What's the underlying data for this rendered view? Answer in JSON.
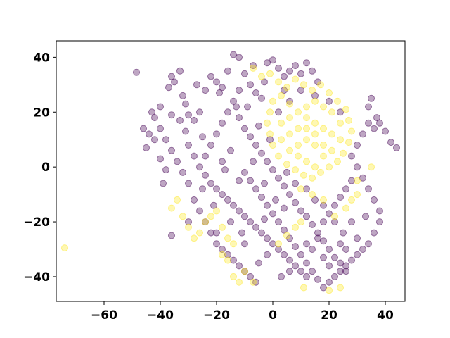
{
  "chart_data": {
    "type": "scatter",
    "title": "",
    "xlabel": "",
    "ylabel": "",
    "xlim": [
      -77,
      47
    ],
    "ylim": [
      -49,
      46
    ],
    "x_ticks": [
      -60,
      -40,
      -20,
      0,
      20,
      40
    ],
    "y_ticks": [
      -40,
      -20,
      0,
      20,
      40
    ],
    "x_tick_labels": [
      "−60",
      "−40",
      "−20",
      "0",
      "20",
      "40"
    ],
    "y_tick_labels": [
      "−40",
      "−20",
      "0",
      "20",
      "40"
    ],
    "grid": false,
    "legend": "none",
    "marker_alpha": 0.35,
    "colors": {
      "class_0": "#440154",
      "class_1": "#fde725"
    },
    "series": [
      {
        "color_key": "class_0",
        "points": [
          [
            -48.5,
            34.5
          ],
          [
            -44,
            12
          ],
          [
            -46,
            14
          ],
          [
            -42,
            10
          ],
          [
            -45,
            7
          ],
          [
            -40,
            3
          ],
          [
            -38,
            -1
          ],
          [
            -39,
            -6
          ],
          [
            -36,
            33
          ],
          [
            -37,
            29
          ],
          [
            -35,
            31
          ],
          [
            -33,
            35
          ],
          [
            -32,
            26
          ],
          [
            -31,
            23
          ],
          [
            -30,
            19
          ],
          [
            -28,
            17
          ],
          [
            -26,
            20
          ],
          [
            -25,
            11
          ],
          [
            -22,
            33
          ],
          [
            -20,
            31
          ],
          [
            -18,
            29
          ],
          [
            -16,
            35
          ],
          [
            -14,
            41
          ],
          [
            -12,
            40
          ],
          [
            -10,
            34
          ],
          [
            -8,
            30
          ],
          [
            -6,
            27
          ],
          [
            -4,
            25
          ],
          [
            -2,
            38
          ],
          [
            0,
            39
          ],
          [
            2,
            36
          ],
          [
            4,
            33
          ],
          [
            6,
            35
          ],
          [
            8,
            37
          ],
          [
            10,
            34
          ],
          [
            12,
            38
          ],
          [
            14,
            35
          ],
          [
            16,
            31
          ],
          [
            -13,
            22
          ],
          [
            -12,
            18
          ],
          [
            -10,
            14
          ],
          [
            -8,
            11
          ],
          [
            -6,
            8
          ],
          [
            -4,
            5
          ],
          [
            -2,
            2
          ],
          [
            0,
            -1
          ],
          [
            2,
            -4
          ],
          [
            4,
            -7
          ],
          [
            6,
            -10
          ],
          [
            8,
            -13
          ],
          [
            10,
            -16
          ],
          [
            12,
            -18
          ],
          [
            14,
            -21
          ],
          [
            16,
            -24
          ],
          [
            18,
            -27
          ],
          [
            20,
            -30
          ],
          [
            22,
            -33
          ],
          [
            24,
            -35
          ],
          [
            26,
            -38
          ],
          [
            -24,
            -3
          ],
          [
            -22,
            -6
          ],
          [
            -20,
            -8
          ],
          [
            -18,
            -10
          ],
          [
            -16,
            -12
          ],
          [
            -14,
            -14
          ],
          [
            -12,
            -16
          ],
          [
            -10,
            -18
          ],
          [
            -8,
            -20
          ],
          [
            -6,
            -22
          ],
          [
            -4,
            -24
          ],
          [
            -2,
            -26
          ],
          [
            0,
            -28
          ],
          [
            2,
            -30
          ],
          [
            4,
            -32
          ],
          [
            6,
            -34
          ],
          [
            8,
            -36
          ],
          [
            10,
            -38
          ],
          [
            12,
            -40
          ],
          [
            -28,
            -12
          ],
          [
            -26,
            -16
          ],
          [
            -24,
            -20
          ],
          [
            -22,
            -24
          ],
          [
            -20,
            -28
          ],
          [
            -18,
            -30
          ],
          [
            -16,
            -32
          ],
          [
            -14,
            -34
          ],
          [
            -12,
            -36
          ],
          [
            -10,
            -38
          ],
          [
            -8,
            -40
          ],
          [
            -6,
            -42
          ],
          [
            30,
            8
          ],
          [
            32,
            12
          ],
          [
            34,
            16
          ],
          [
            36,
            14
          ],
          [
            38,
            16
          ],
          [
            40,
            13
          ],
          [
            42,
            9
          ],
          [
            44,
            7
          ],
          [
            35,
            25
          ],
          [
            34,
            22
          ],
          [
            37,
            18
          ],
          [
            28,
            4
          ],
          [
            30,
            0
          ],
          [
            32,
            -4
          ],
          [
            34,
            -8
          ],
          [
            36,
            -12
          ],
          [
            38,
            -16
          ],
          [
            38,
            -20
          ],
          [
            36,
            -24
          ],
          [
            34,
            -28
          ],
          [
            32,
            -30
          ],
          [
            30,
            -32
          ],
          [
            28,
            -34
          ],
          [
            26,
            -36
          ],
          [
            24,
            -38
          ],
          [
            22,
            -40
          ],
          [
            20,
            -42
          ],
          [
            18,
            -44
          ],
          [
            -30,
            -6
          ],
          [
            -32,
            -2
          ],
          [
            -34,
            2
          ],
          [
            -36,
            6
          ],
          [
            -38,
            10
          ],
          [
            -40,
            14
          ],
          [
            -42,
            18
          ],
          [
            -30,
            8
          ],
          [
            -28,
            4
          ],
          [
            -26,
            0
          ],
          [
            -24,
            4
          ],
          [
            -22,
            8
          ],
          [
            -20,
            12
          ],
          [
            -18,
            16
          ],
          [
            -16,
            20
          ],
          [
            -14,
            24
          ],
          [
            -12,
            28
          ],
          [
            -10,
            -2
          ],
          [
            -8,
            -5
          ],
          [
            -6,
            -8
          ],
          [
            -4,
            -11
          ],
          [
            -2,
            -14
          ],
          [
            0,
            -17
          ],
          [
            2,
            -20
          ],
          [
            4,
            -23
          ],
          [
            6,
            -26
          ],
          [
            8,
            -29
          ],
          [
            10,
            -32
          ],
          [
            12,
            -35
          ],
          [
            14,
            -38
          ],
          [
            16,
            -41
          ],
          [
            18,
            -20
          ],
          [
            20,
            -17
          ],
          [
            22,
            -14
          ],
          [
            24,
            -11
          ],
          [
            26,
            -8
          ],
          [
            28,
            -5
          ],
          [
            -36,
            -25
          ],
          [
            -30,
            -20
          ],
          [
            -20,
            -24
          ],
          [
            -5,
            -35
          ],
          [
            3,
            -40
          ],
          [
            16,
            -26
          ],
          [
            22,
            -20
          ],
          [
            25,
            -24
          ],
          [
            -18,
            2
          ],
          [
            -15,
            6
          ],
          [
            -5,
            15
          ],
          [
            2,
            20
          ],
          [
            6,
            24
          ],
          [
            10,
            28
          ],
          [
            15,
            26
          ],
          [
            20,
            24
          ],
          [
            24,
            20
          ],
          [
            -3,
            -6
          ],
          [
            5,
            -2
          ],
          [
            8,
            -6
          ],
          [
            12,
            -8
          ],
          [
            15,
            -12
          ],
          [
            18,
            -14
          ],
          [
            -27,
            30
          ],
          [
            -24,
            28
          ],
          [
            -19,
            27
          ],
          [
            -9,
            22
          ],
          [
            -3,
            31
          ],
          [
            -7,
            37
          ],
          [
            4,
            28
          ],
          [
            -1,
            10
          ],
          [
            -7,
            2
          ],
          [
            -12,
            -5
          ],
          [
            -17,
            -1
          ],
          [
            -21,
            -14
          ],
          [
            -25,
            -8
          ],
          [
            -10,
            -28
          ],
          [
            -2,
            -32
          ],
          [
            6,
            -38
          ],
          [
            14,
            -30
          ],
          [
            20,
            -36
          ],
          [
            26,
            -30
          ],
          [
            30,
            -26
          ],
          [
            33,
            -18
          ],
          [
            -43,
            20
          ],
          [
            -40,
            22
          ],
          [
            -36,
            19
          ],
          [
            -33,
            17
          ],
          [
            -31,
            13
          ],
          [
            28,
            -20
          ],
          [
            24,
            -28
          ],
          [
            18,
            -33
          ],
          [
            12,
            -28
          ],
          [
            -15,
            -20
          ],
          [
            -11,
            -24
          ],
          [
            -3,
            -19
          ],
          [
            1,
            -12
          ],
          [
            4,
            -15
          ]
        ]
      },
      {
        "color_key": "class_1",
        "points": [
          [
            -74,
            -29.5
          ],
          [
            -7,
            36
          ],
          [
            -4,
            33
          ],
          [
            -1,
            34
          ],
          [
            2,
            31
          ],
          [
            5,
            29
          ],
          [
            8,
            32
          ],
          [
            11,
            30
          ],
          [
            14,
            28
          ],
          [
            17,
            30
          ],
          [
            20,
            27
          ],
          [
            23,
            24
          ],
          [
            26,
            21
          ],
          [
            27,
            17
          ],
          [
            28,
            13
          ],
          [
            27,
            9
          ],
          [
            25,
            5
          ],
          [
            23,
            2
          ],
          [
            20,
            0
          ],
          [
            17,
            -2
          ],
          [
            14,
            -4
          ],
          [
            11,
            -3
          ],
          [
            8,
            -1
          ],
          [
            5,
            1
          ],
          [
            2,
            4
          ],
          [
            0,
            8
          ],
          [
            -1,
            12
          ],
          [
            -2,
            16
          ],
          [
            -1,
            20
          ],
          [
            0,
            24
          ],
          [
            3,
            26
          ],
          [
            6,
            23
          ],
          [
            9,
            20
          ],
          [
            12,
            18
          ],
          [
            15,
            16
          ],
          [
            18,
            14
          ],
          [
            21,
            12
          ],
          [
            24,
            10
          ],
          [
            21,
            20
          ],
          [
            18,
            22
          ],
          [
            15,
            24
          ],
          [
            12,
            22
          ],
          [
            9,
            14
          ],
          [
            6,
            12
          ],
          [
            3,
            10
          ],
          [
            6,
            6
          ],
          [
            9,
            4
          ],
          [
            12,
            2
          ],
          [
            15,
            0
          ],
          [
            18,
            4
          ],
          [
            21,
            6
          ],
          [
            24,
            16
          ],
          [
            12,
            10
          ],
          [
            15,
            8
          ],
          [
            18,
            8
          ],
          [
            9,
            8
          ],
          [
            6,
            18
          ],
          [
            3,
            16
          ],
          [
            12,
            14
          ],
          [
            15,
            12
          ],
          [
            30,
            -5
          ],
          [
            35,
            0
          ],
          [
            30,
            -10
          ],
          [
            28,
            -12
          ],
          [
            26,
            -15
          ],
          [
            22,
            -18
          ],
          [
            -36,
            -15
          ],
          [
            -34,
            -12
          ],
          [
            -32,
            -18
          ],
          [
            -30,
            -22
          ],
          [
            -28,
            -26
          ],
          [
            -26,
            -24
          ],
          [
            -24,
            -20
          ],
          [
            -22,
            -18
          ],
          [
            -20,
            -16
          ],
          [
            -18,
            -22
          ],
          [
            -16,
            -26
          ],
          [
            -14,
            -28
          ],
          [
            -18,
            -32
          ],
          [
            -16,
            -34
          ],
          [
            -14,
            -40
          ],
          [
            -12,
            -42
          ],
          [
            -10,
            -38
          ],
          [
            10,
            -20
          ],
          [
            8,
            -22
          ],
          [
            5,
            -25
          ],
          [
            2,
            -28
          ],
          [
            10,
            -8
          ],
          [
            14,
            -10
          ],
          [
            18,
            -12
          ],
          [
            24,
            -44
          ],
          [
            20,
            -45
          ],
          [
            11,
            -44
          ],
          [
            -7,
            -42
          ]
        ]
      }
    ]
  }
}
